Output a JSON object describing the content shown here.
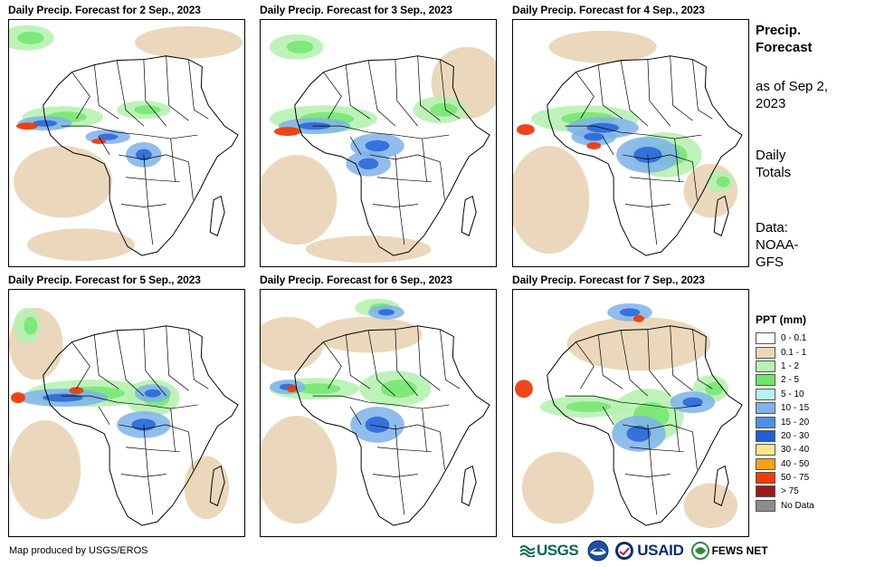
{
  "panels": [
    {
      "title": "Daily Precip. Forecast for 2 Sep., 2023"
    },
    {
      "title": "Daily Precip. Forecast for 3 Sep., 2023"
    },
    {
      "title": "Daily Precip. Forecast for 4 Sep., 2023"
    },
    {
      "title": "Daily Precip. Forecast for 5 Sep., 2023"
    },
    {
      "title": "Daily Precip. Forecast for 6 Sep., 2023"
    },
    {
      "title": "Daily Precip. Forecast for 7 Sep., 2023"
    }
  ],
  "sidebar": {
    "title": "Precip. Forecast",
    "as_of": "as of Sep 2, 2023",
    "totals": "Daily Totals",
    "data_source": "Data: NOAA-GFS"
  },
  "legend": {
    "title": "PPT (mm)",
    "items": [
      {
        "label": "0 - 0.1",
        "color": "#ffffff"
      },
      {
        "label": "0.1 - 1",
        "color": "#ead6b8"
      },
      {
        "label": "1 - 2",
        "color": "#b6f2b0"
      },
      {
        "label": "2 - 5",
        "color": "#6ee66a"
      },
      {
        "label": "5 - 10",
        "color": "#b8f0f8"
      },
      {
        "label": "10 - 15",
        "color": "#7eb2ea"
      },
      {
        "label": "15 - 20",
        "color": "#4f8fe4"
      },
      {
        "label": "20 - 30",
        "color": "#1f5ed8"
      },
      {
        "label": "30 - 40",
        "color": "#fce58c"
      },
      {
        "label": "40 - 50",
        "color": "#f8a21a"
      },
      {
        "label": "50 - 75",
        "color": "#f03b0c"
      },
      {
        "label": "> 75",
        "color": "#9a1a1a"
      },
      {
        "label": "No Data",
        "color": "#8c8c8c"
      }
    ]
  },
  "credit": "Map produced by USGS/EROS",
  "logos": {
    "usgs": "USGS",
    "usaid": "USAID",
    "fews": "FEWS NET"
  }
}
